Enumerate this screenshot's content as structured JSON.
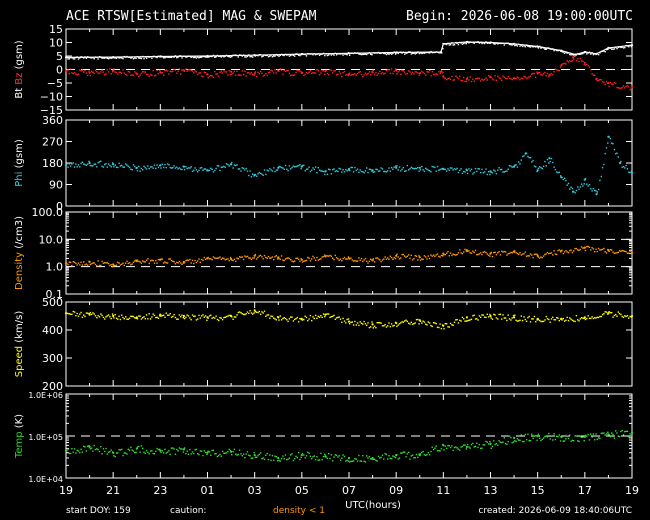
{
  "header": {
    "title": "ACE RTSW[Estimated] MAG & SWEPAM",
    "begin": "Begin: 2026-06-08 19:00:00UTC"
  },
  "footer": {
    "start_doy": "start DOY: 159",
    "caution": "caution:",
    "density_note": "density < 1",
    "created": "created: 2026-06-09 18:40:06UTC"
  },
  "chart_data": {
    "type": "scatter",
    "x_axis": {
      "label": "UTC(hours)",
      "range_hours": [
        19,
        43
      ],
      "tick_labels": [
        "19",
        "21",
        "23",
        "01",
        "03",
        "05",
        "07",
        "09",
        "11",
        "13",
        "15",
        "17",
        "19"
      ]
    },
    "panels": [
      {
        "id": "mag",
        "ylabels": [
          {
            "text": "Bt",
            "color": "#ffffff"
          },
          {
            "text": "Bz",
            "color": "#ff3030"
          },
          {
            "text": "(gsm)",
            "color": "#ffffff"
          }
        ],
        "scale": "linear",
        "ylim": [
          -15,
          15
        ],
        "tick_labels": [
          "15",
          "10",
          "5",
          "0",
          "−5",
          "−10",
          "−15"
        ],
        "tick_values": [
          15,
          10,
          5,
          0,
          -5,
          -10,
          -15
        ],
        "dashed_lines": [
          0
        ],
        "series": [
          {
            "key": "Bt",
            "color": "#ffffff",
            "connected": true,
            "points": [
              [
                19,
                4.5
              ],
              [
                21,
                4.6
              ],
              [
                23,
                4.8
              ],
              [
                25,
                5.0
              ],
              [
                27,
                5.3
              ],
              [
                29,
                5.7
              ],
              [
                31,
                6.0
              ],
              [
                33,
                6.3
              ],
              [
                34.9,
                6.5
              ],
              [
                35,
                9.5
              ],
              [
                36,
                10.2
              ],
              [
                37,
                10.0
              ],
              [
                38,
                9.5
              ],
              [
                39,
                8.5
              ],
              [
                40,
                7.0
              ],
              [
                40.6,
                5.5
              ],
              [
                41,
                6.5
              ],
              [
                41.5,
                5.8
              ],
              [
                42,
                8.0
              ],
              [
                43,
                9.0
              ]
            ]
          },
          {
            "key": "Bz",
            "color": "#ff2020",
            "connected": false,
            "points": [
              [
                19,
                -0.5
              ],
              [
                20,
                -1.2
              ],
              [
                21,
                -0.4
              ],
              [
                22,
                -1.6
              ],
              [
                23,
                -1.0
              ],
              [
                24,
                -0.3
              ],
              [
                25,
                -1.8
              ],
              [
                26,
                -0.8
              ],
              [
                27,
                -1.5
              ],
              [
                28,
                -0.5
              ],
              [
                29,
                -1.3
              ],
              [
                30,
                -0.6
              ],
              [
                31,
                -1.8
              ],
              [
                32,
                -1.0
              ],
              [
                33,
                -0.4
              ],
              [
                34,
                -1.4
              ],
              [
                34.9,
                -0.8
              ],
              [
                35,
                -2.5
              ],
              [
                36,
                -3.5
              ],
              [
                37,
                -2.8
              ],
              [
                38,
                -3.2
              ],
              [
                39,
                -1.5
              ],
              [
                39.5,
                -2.0
              ],
              [
                40,
                1.5
              ],
              [
                40.5,
                4.5
              ],
              [
                41,
                2.5
              ],
              [
                41.5,
                -3.5
              ],
              [
                42,
                -5.0
              ],
              [
                43,
                -6.5
              ]
            ]
          }
        ]
      },
      {
        "id": "phi",
        "ylabels": [
          {
            "text": "Phi",
            "color": "#33ccdd"
          },
          {
            "text": "(gsm)",
            "color": "#ffffff"
          }
        ],
        "scale": "linear",
        "ylim": [
          0,
          360
        ],
        "tick_labels": [
          "360",
          "270",
          "180",
          "90",
          "0"
        ],
        "tick_values": [
          360,
          270,
          180,
          90,
          0
        ],
        "dashed_lines": [],
        "series": [
          {
            "key": "Phi",
            "color": "#33ccdd",
            "connected": false,
            "points": [
              [
                19,
                170
              ],
              [
                20,
                180
              ],
              [
                21,
                175
              ],
              [
                22,
                160
              ],
              [
                23,
                170
              ],
              [
                24,
                165
              ],
              [
                25,
                150
              ],
              [
                26,
                175
              ],
              [
                27,
                130
              ],
              [
                28,
                160
              ],
              [
                29,
                165
              ],
              [
                30,
                145
              ],
              [
                31,
                155
              ],
              [
                32,
                150
              ],
              [
                33,
                160
              ],
              [
                34,
                160
              ],
              [
                35,
                155
              ],
              [
                36,
                150
              ],
              [
                37,
                145
              ],
              [
                38,
                165
              ],
              [
                38.5,
                220
              ],
              [
                39,
                150
              ],
              [
                39.5,
                200
              ],
              [
                40,
                120
              ],
              [
                40.5,
                60
              ],
              [
                41,
                110
              ],
              [
                41.5,
                50
              ],
              [
                42,
                290
              ],
              [
                42.5,
                180
              ],
              [
                43,
                140
              ]
            ]
          }
        ]
      },
      {
        "id": "density",
        "ylabels": [
          {
            "text": "Density",
            "color": "#ff9900"
          },
          {
            "text": "(/cm3)",
            "color": "#ffffff"
          }
        ],
        "scale": "log",
        "ylim": [
          0.1,
          100
        ],
        "tick_labels": [
          "100.0",
          "10.0",
          "1.0",
          "0.1"
        ],
        "tick_values": [
          100,
          10,
          1,
          0.1
        ],
        "dashed_lines": [
          10,
          1
        ],
        "series": [
          {
            "key": "Density",
            "color": "#ff9900",
            "connected": false,
            "points": [
              [
                19,
                1.3
              ],
              [
                20,
                1.5
              ],
              [
                21,
                1.2
              ],
              [
                22,
                1.6
              ],
              [
                23,
                1.8
              ],
              [
                24,
                1.5
              ],
              [
                25,
                2.0
              ],
              [
                26,
                1.9
              ],
              [
                27,
                2.5
              ],
              [
                28,
                2.2
              ],
              [
                29,
                1.8
              ],
              [
                30,
                2.4
              ],
              [
                31,
                2.0
              ],
              [
                32,
                1.7
              ],
              [
                33,
                2.5
              ],
              [
                34,
                2.2
              ],
              [
                35,
                3.0
              ],
              [
                36,
                4.0
              ],
              [
                37,
                3.0
              ],
              [
                38,
                3.5
              ],
              [
                39,
                2.5
              ],
              [
                40,
                3.8
              ],
              [
                41,
                5.0
              ],
              [
                42,
                4.0
              ],
              [
                43,
                3.2
              ]
            ]
          }
        ]
      },
      {
        "id": "speed",
        "ylabels": [
          {
            "text": "Speed",
            "color": "#ffff00"
          },
          {
            "text": "(km/s)",
            "color": "#ffffff"
          }
        ],
        "scale": "linear",
        "ylim": [
          200,
          500
        ],
        "tick_labels": [
          "500",
          "400",
          "300",
          "200"
        ],
        "tick_values": [
          500,
          400,
          300,
          200
        ],
        "dashed_lines": [],
        "series": [
          {
            "key": "Speed",
            "color": "#ffff00",
            "connected": false,
            "points": [
              [
                19,
                460
              ],
              [
                20,
                455
              ],
              [
                21,
                450
              ],
              [
                22,
                445
              ],
              [
                23,
                455
              ],
              [
                24,
                450
              ],
              [
                25,
                445
              ],
              [
                26,
                450
              ],
              [
                27,
                470
              ],
              [
                28,
                445
              ],
              [
                29,
                440
              ],
              [
                30,
                455
              ],
              [
                31,
                430
              ],
              [
                32,
                420
              ],
              [
                33,
                425
              ],
              [
                34,
                435
              ],
              [
                35,
                415
              ],
              [
                36,
                445
              ],
              [
                37,
                450
              ],
              [
                38,
                445
              ],
              [
                39,
                440
              ],
              [
                40,
                440
              ],
              [
                41,
                445
              ],
              [
                42,
                460
              ],
              [
                43,
                450
              ]
            ]
          }
        ]
      },
      {
        "id": "temp",
        "ylabels": [
          {
            "text": "Temp",
            "color": "#33cc33"
          },
          {
            "text": "(K)",
            "color": "#ffffff"
          }
        ],
        "scale": "log",
        "ylim": [
          10000,
          1000000
        ],
        "tick_labels": [
          "1.0E+06",
          "1.0E+05",
          "1.0E+04"
        ],
        "tick_values": [
          1000000,
          100000,
          10000
        ],
        "dashed_lines": [
          100000
        ],
        "series": [
          {
            "key": "Temp",
            "color": "#33dd33",
            "connected": false,
            "points": [
              [
                19,
                45000
              ],
              [
                20,
                55000
              ],
              [
                21,
                40000
              ],
              [
                22,
                50000
              ],
              [
                23,
                45000
              ],
              [
                24,
                48000
              ],
              [
                25,
                40000
              ],
              [
                26,
                42000
              ],
              [
                27,
                35000
              ],
              [
                28,
                30000
              ],
              [
                29,
                35000
              ],
              [
                30,
                33000
              ],
              [
                31,
                30000
              ],
              [
                32,
                30000
              ],
              [
                33,
                35000
              ],
              [
                34,
                35000
              ],
              [
                35,
                60000
              ],
              [
                36,
                55000
              ],
              [
                37,
                65000
              ],
              [
                38,
                90000
              ],
              [
                39,
                100000
              ],
              [
                40,
                95000
              ],
              [
                41,
                95000
              ],
              [
                42,
                110000
              ],
              [
                43,
                120000
              ]
            ]
          }
        ]
      }
    ]
  }
}
